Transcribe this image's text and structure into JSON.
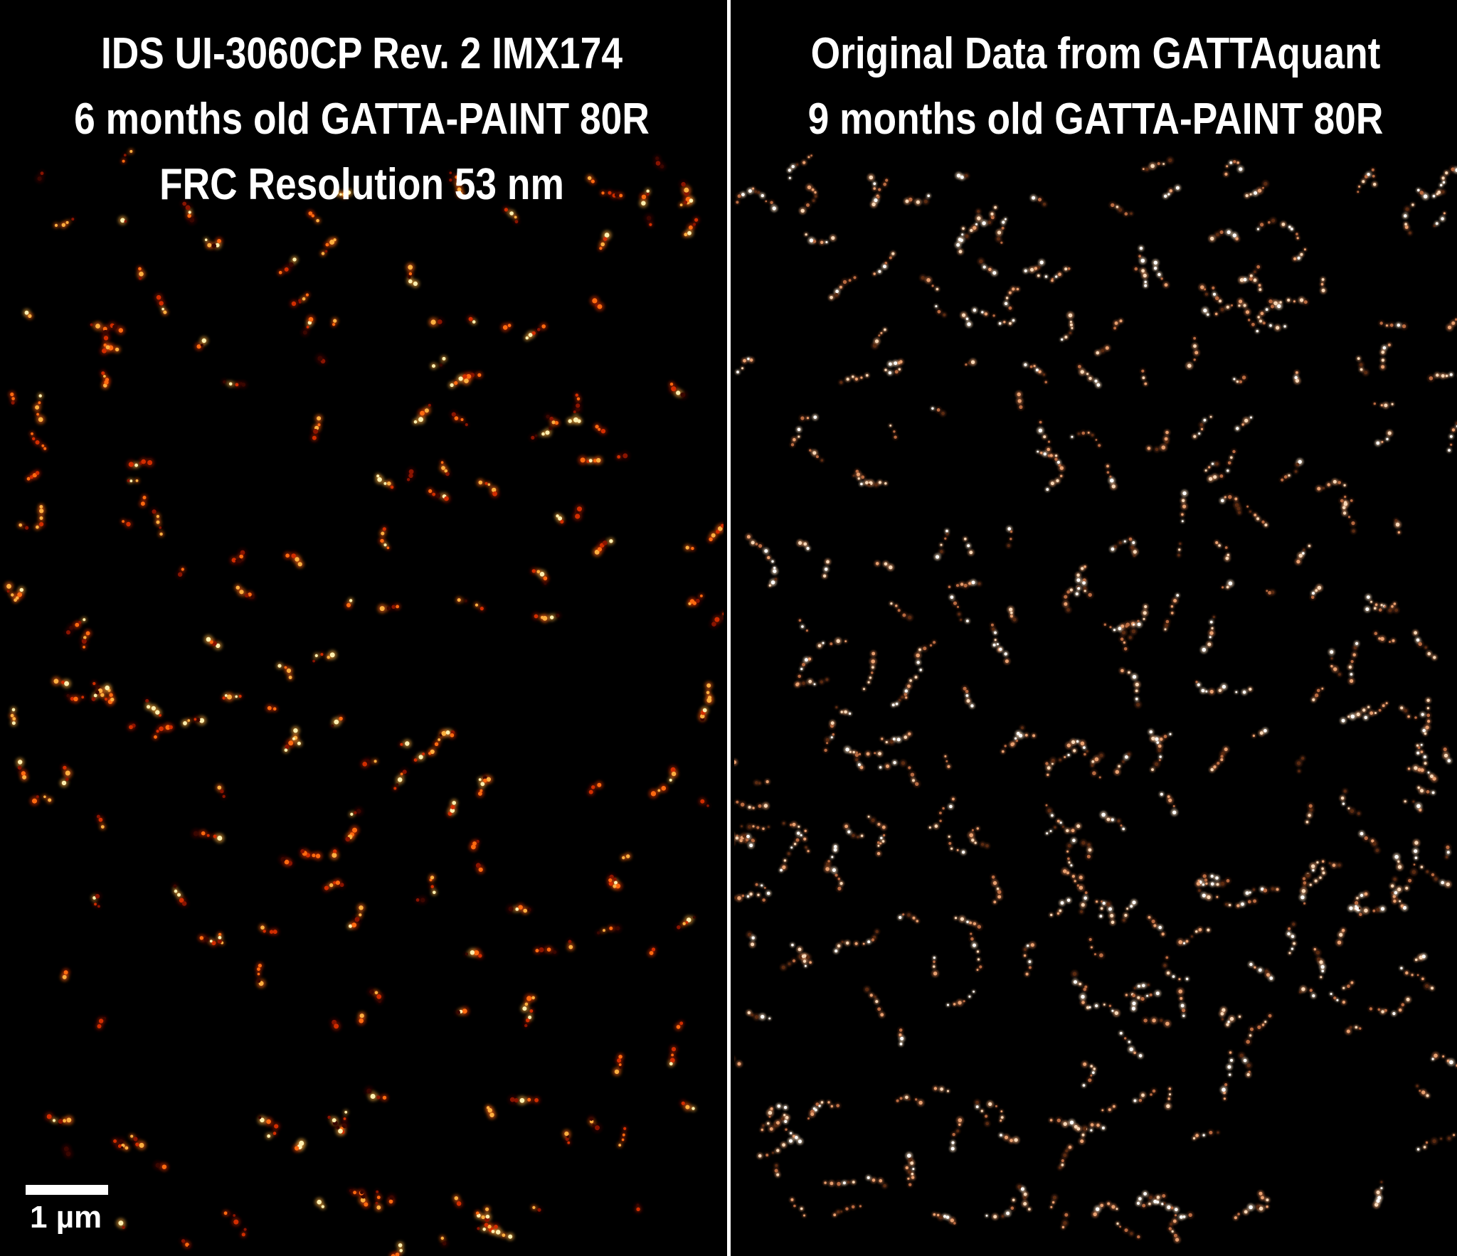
{
  "figure": {
    "left": {
      "lines": [
        "IDS UI-3060CP Rev. 2 IMX174",
        "6 months old GATTA-PAINT 80R",
        "FRC Resolution 53 nm"
      ],
      "colormap": "hot",
      "colors": [
        "#3a0600",
        "#8a1400",
        "#d22d00",
        "#ff6a10",
        "#ffb040",
        "#fff0b0"
      ]
    },
    "right": {
      "lines": [
        "Original Data from GATTAquant",
        "9 months old GATTA-PAINT 80R"
      ],
      "colormap": "hot",
      "colors": [
        "#5a2a10",
        "#b86a40",
        "#e8a070",
        "#f8d8b8",
        "#ffffff"
      ]
    },
    "scale_bar": {
      "label": "1 µm",
      "color": "#ffffff"
    },
    "divider_color": "#ffffff",
    "background": "#000000"
  }
}
